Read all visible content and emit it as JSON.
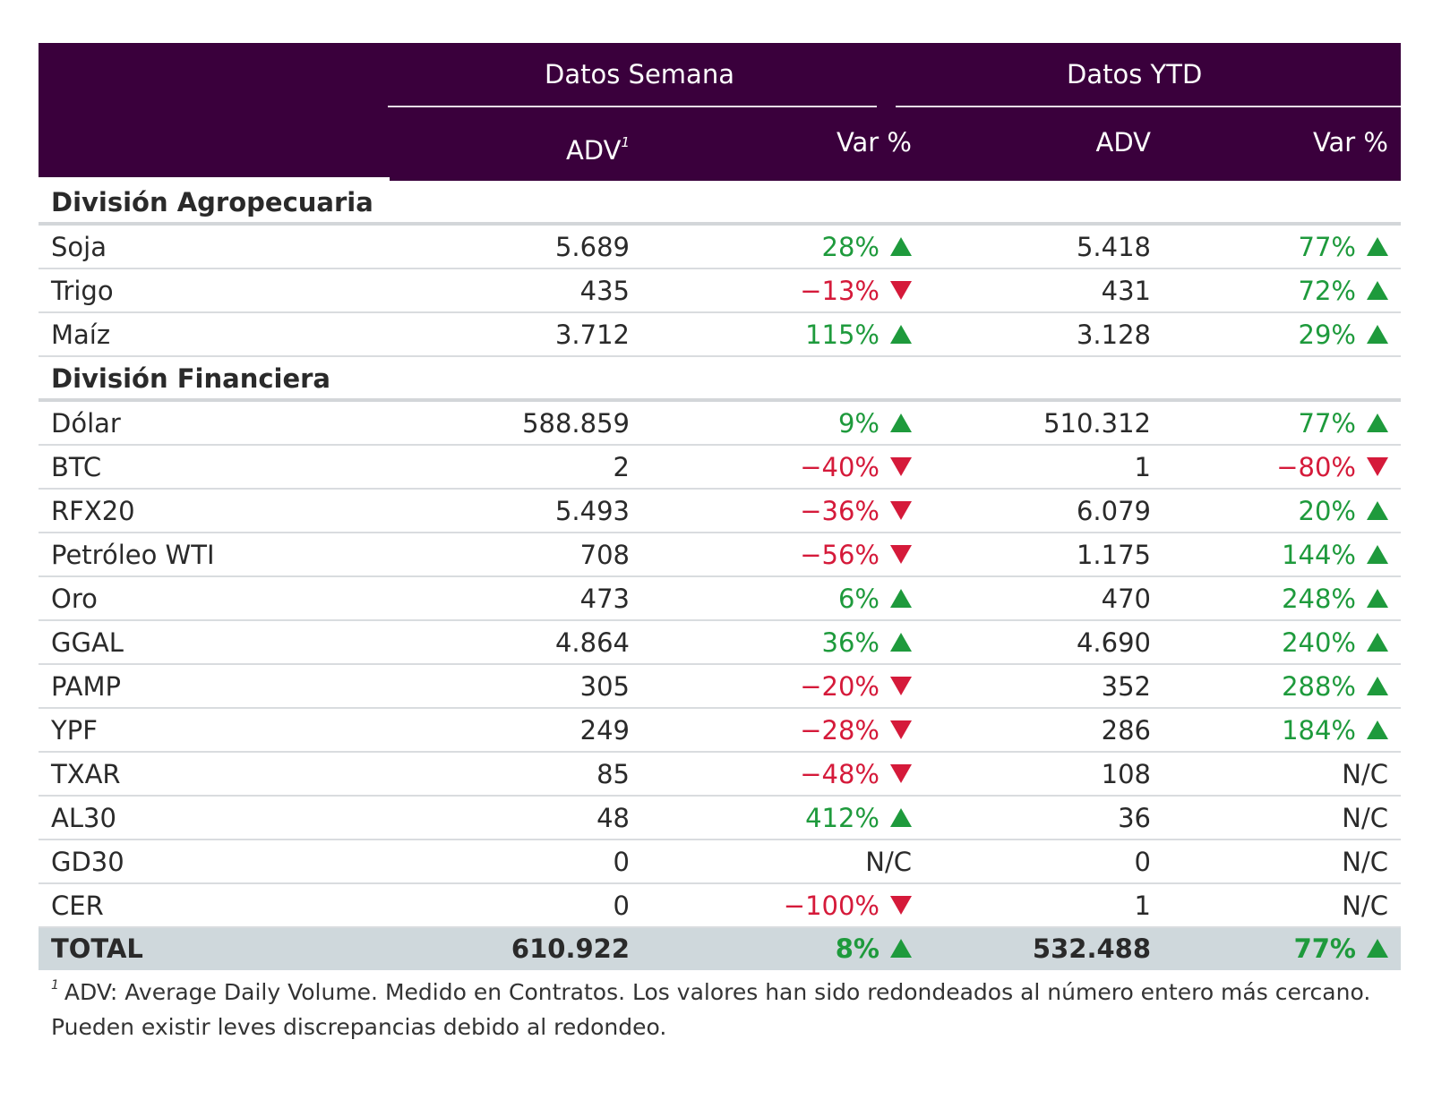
{
  "header": {
    "group_week": "Datos Semana",
    "group_ytd": "Datos YTD",
    "col_week_adv": "ADV",
    "col_week_adv_sup": "1",
    "col_week_var": "Var %",
    "col_ytd_adv": "ADV",
    "col_ytd_var": "Var %"
  },
  "sections": [
    {
      "title": "División Agropecuaria",
      "rows": [
        {
          "name": "Soja",
          "w_adv": "5.689",
          "w_var": "28%",
          "w_dir": "up",
          "y_adv": "5.418",
          "y_var": "77%",
          "y_dir": "up"
        },
        {
          "name": "Trigo",
          "w_adv": "435",
          "w_var": "−13%",
          "w_dir": "down",
          "y_adv": "431",
          "y_var": "72%",
          "y_dir": "up"
        },
        {
          "name": "Maíz",
          "w_adv": "3.712",
          "w_var": "115%",
          "w_dir": "up",
          "y_adv": "3.128",
          "y_var": "29%",
          "y_dir": "up"
        }
      ]
    },
    {
      "title": "División Financiera",
      "rows": [
        {
          "name": "Dólar",
          "w_adv": "588.859",
          "w_var": "9%",
          "w_dir": "up",
          "y_adv": "510.312",
          "y_var": "77%",
          "y_dir": "up"
        },
        {
          "name": "BTC",
          "w_adv": "2",
          "w_var": "−40%",
          "w_dir": "down",
          "y_adv": "1",
          "y_var": "−80%",
          "y_dir": "down"
        },
        {
          "name": "RFX20",
          "w_adv": "5.493",
          "w_var": "−36%",
          "w_dir": "down",
          "y_adv": "6.079",
          "y_var": "20%",
          "y_dir": "up"
        },
        {
          "name": "Petróleo WTI",
          "w_adv": "708",
          "w_var": "−56%",
          "w_dir": "down",
          "y_adv": "1.175",
          "y_var": "144%",
          "y_dir": "up"
        },
        {
          "name": "Oro",
          "w_adv": "473",
          "w_var": "6%",
          "w_dir": "up",
          "y_adv": "470",
          "y_var": "248%",
          "y_dir": "up"
        },
        {
          "name": "GGAL",
          "w_adv": "4.864",
          "w_var": "36%",
          "w_dir": "up",
          "y_adv": "4.690",
          "y_var": "240%",
          "y_dir": "up"
        },
        {
          "name": "PAMP",
          "w_adv": "305",
          "w_var": "−20%",
          "w_dir": "down",
          "y_adv": "352",
          "y_var": "288%",
          "y_dir": "up"
        },
        {
          "name": "YPF",
          "w_adv": "249",
          "w_var": "−28%",
          "w_dir": "down",
          "y_adv": "286",
          "y_var": "184%",
          "y_dir": "up"
        },
        {
          "name": "TXAR",
          "w_adv": "85",
          "w_var": "−48%",
          "w_dir": "down",
          "y_adv": "108",
          "y_var": "N/C",
          "y_dir": "none"
        },
        {
          "name": "AL30",
          "w_adv": "48",
          "w_var": "412%",
          "w_dir": "up",
          "y_adv": "36",
          "y_var": "N/C",
          "y_dir": "none"
        },
        {
          "name": "GD30",
          "w_adv": "0",
          "w_var": "N/C",
          "w_dir": "none",
          "y_adv": "0",
          "y_var": "N/C",
          "y_dir": "none"
        },
        {
          "name": "CER",
          "w_adv": "0",
          "w_var": "−100%",
          "w_dir": "down",
          "y_adv": "1",
          "y_var": "N/C",
          "y_dir": "none"
        }
      ]
    }
  ],
  "total": {
    "name": "TOTAL",
    "w_adv": "610.922",
    "w_var": "8%",
    "w_dir": "up",
    "y_adv": "532.488",
    "y_var": "77%",
    "y_dir": "up"
  },
  "footnote": {
    "marker": "1",
    "text": "ADV: Average Daily Volume. Medido en Contratos. Los valores han sido redondeados al número entero más cercano. Pueden existir leves discrepancias debido al redondeo."
  },
  "colors": {
    "header_bg": "#3a003c",
    "positive": "#1e9a3c",
    "negative": "#d51a3a",
    "total_bg": "#cfd8dc"
  },
  "icons": {
    "up": "triangle-up-icon",
    "down": "triangle-down-icon"
  }
}
